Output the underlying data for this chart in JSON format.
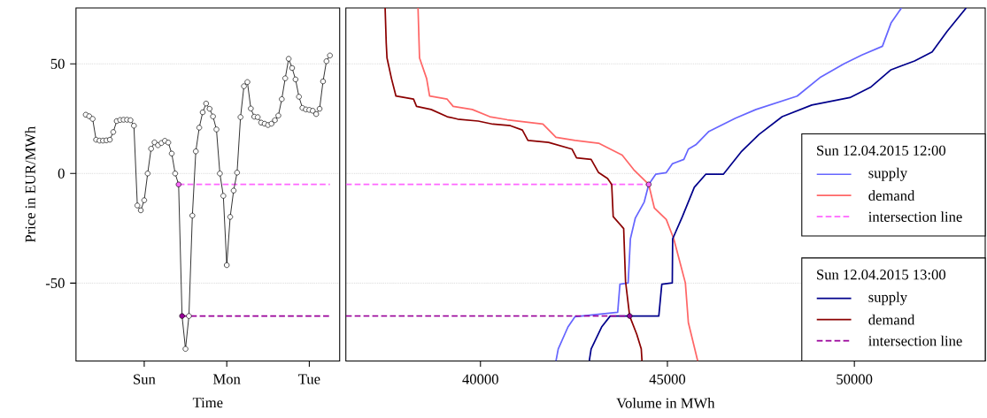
{
  "chart_data": [
    {
      "type": "line",
      "xlabel": "Time",
      "ylabel": "Price in EUR/MWh",
      "marker": "circle",
      "grid": "y",
      "categories": [
        null,
        null,
        null,
        null,
        null,
        null,
        null,
        null,
        null,
        null,
        null,
        null,
        null,
        null,
        null,
        null,
        null,
        "Sun",
        null,
        null,
        null,
        null,
        null,
        null,
        null,
        null,
        null,
        null,
        null,
        null,
        null,
        null,
        null,
        null,
        null,
        null,
        null,
        null,
        null,
        null,
        null,
        "Mon",
        null,
        null,
        null,
        null,
        null,
        null,
        null,
        null,
        null,
        null,
        null,
        null,
        null,
        null,
        null,
        null,
        null,
        null,
        null,
        null,
        null,
        null,
        null,
        "Tue",
        null,
        null,
        null,
        null,
        null,
        null
      ],
      "ylim": [
        -85.5,
        75.5
      ],
      "yticks": [
        -50,
        0,
        50
      ],
      "series": [
        {
          "type": "line",
          "color": "#ff66ff",
          "line_style": "dashed",
          "marker": "none",
          "values": [
            null,
            null,
            null,
            null,
            null,
            null,
            null,
            null,
            null,
            null,
            null,
            null,
            null,
            null,
            null,
            null,
            null,
            null,
            null,
            null,
            null,
            null,
            null,
            null,
            null,
            null,
            null,
            -5,
            -5,
            -5,
            -5,
            -5,
            -5,
            -5,
            -5,
            -5,
            -5,
            -5,
            -5,
            -5,
            -5,
            -5,
            -5,
            -5,
            -5,
            -5,
            -5,
            -5,
            -5,
            -5,
            -5,
            -5,
            -5,
            -5,
            -5,
            -5,
            -5,
            -5,
            -5,
            -5,
            -5,
            -5,
            -5,
            -5,
            -5,
            -5,
            -5,
            -5,
            -5,
            -5,
            -5,
            -5
          ]
        },
        {
          "type": "line",
          "color": "#990099",
          "line_style": "dashed",
          "marker": "none",
          "values": [
            null,
            null,
            null,
            null,
            null,
            null,
            null,
            null,
            null,
            null,
            null,
            null,
            null,
            null,
            null,
            null,
            null,
            null,
            null,
            null,
            null,
            null,
            null,
            null,
            null,
            null,
            null,
            null,
            -65,
            -65,
            -65,
            -65,
            -65,
            -65,
            -65,
            -65,
            -65,
            -65,
            -65,
            -65,
            -65,
            -65,
            -65,
            -65,
            -65,
            -65,
            -65,
            -65,
            -65,
            -65,
            -65,
            -65,
            -65,
            -65,
            -65,
            -65,
            -65,
            -65,
            -65,
            -65,
            -65,
            -65,
            -65,
            -65,
            -65,
            -65,
            -65,
            -65,
            -65,
            -65,
            -65,
            -65
          ]
        },
        {
          "color": "#000000",
          "values": [
            26.8,
            26.1,
            24.9,
            15.4,
            15.0,
            15.0,
            15.1,
            15.4,
            18.9,
            23.9,
            24.4,
            24.5,
            24.5,
            24.3,
            21.8,
            -14.6,
            -16.8,
            -12.2,
            0,
            11.3,
            14.2,
            12.9,
            13.9,
            14.9,
            14.1,
            9.1,
            0,
            -5,
            -65,
            -80,
            -65,
            -19.2,
            10.1,
            20.9,
            27.9,
            31.9,
            29.5,
            26.0,
            20.1,
            0,
            -10.2,
            -41.8,
            -19.8,
            -7.8,
            0.4,
            25.7,
            39.8,
            41.7,
            29.6,
            25.9,
            25.7,
            23.2,
            22.7,
            22.1,
            22.7,
            24.3,
            26.4,
            33.9,
            43.4,
            52.3,
            48.1,
            42.9,
            35.0,
            29.9,
            29.2,
            29.0,
            28.6,
            27.1,
            29.5,
            42.0,
            51.2,
            53.8
          ],
          "colors": [
            "#ffffff",
            "#ffffff",
            "#ffffff",
            "#ffffff",
            "#ffffff",
            "#ffffff",
            "#ffffff",
            "#ffffff",
            "#ffffff",
            "#ffffff",
            "#ffffff",
            "#ffffff",
            "#ffffff",
            "#ffffff",
            "#ffffff",
            "#ffffff",
            "#ffffff",
            "#ffffff",
            "#ffffff",
            "#ffffff",
            "#ffffff",
            "#ffffff",
            "#ffffff",
            "#ffffff",
            "#ffffff",
            "#ffffff",
            "#ffffff",
            "#ff66ff",
            "#990099",
            "#ffffff",
            "#ffffff",
            "#ffffff",
            "#ffffff",
            "#ffffff",
            "#ffffff",
            "#ffffff",
            "#ffffff",
            "#ffffff",
            "#ffffff",
            "#ffffff",
            "#ffffff",
            "#ffffff",
            "#ffffff",
            "#ffffff",
            "#ffffff",
            "#ffffff",
            "#ffffff",
            "#ffffff",
            "#ffffff",
            "#ffffff",
            "#ffffff",
            "#ffffff",
            "#ffffff",
            "#ffffff",
            "#ffffff",
            "#ffffff",
            "#ffffff",
            "#ffffff",
            "#ffffff",
            "#ffffff",
            "#ffffff",
            "#ffffff",
            "#ffffff",
            "#ffffff",
            "#ffffff",
            "#ffffff",
            "#ffffff",
            "#ffffff",
            "#ffffff",
            "#ffffff",
            "#ffffff",
            "#ffffff"
          ]
        }
      ]
    },
    {
      "type": "line",
      "xlabel": "Volume in MWh",
      "grid": "y",
      "tick_labels": "x",
      "legend": "right",
      "xlim": [
        36400,
        53500
      ],
      "ylim": [
        -85.5,
        75.5
      ],
      "xticks": [
        40000,
        45000,
        50000
      ],
      "yticks": [
        -50,
        0,
        50
      ],
      "annotations": [
        "Sun 12.04.2015 12:00",
        "Sun 12.04.2015 13:00"
      ],
      "series": [
        {
          "name": "supply",
          "color": "#6666ff",
          "x": [
            42020,
            42080,
            42340,
            42530,
            43670,
            43730,
            43950,
            44010,
            44140,
            44380,
            44500,
            44690,
            44970,
            45130,
            45440,
            45560,
            45760,
            46110,
            46820,
            47370,
            48470,
            49100,
            49720,
            50200,
            50750,
            50980,
            51260
          ],
          "values": [
            -85.5,
            -80,
            -70,
            -65.3,
            -63.3,
            -50.5,
            -49.9,
            -29.8,
            -20.4,
            -13,
            -5,
            -0.3,
            0.4,
            4.4,
            6.4,
            11.1,
            13.1,
            19.2,
            25.2,
            29.2,
            35.3,
            44,
            50,
            54,
            58,
            68.6,
            75.5
          ]
        },
        {
          "name": "demand",
          "color": "#ff6666",
          "x": [
            38330,
            38370,
            38560,
            38640,
            39110,
            39270,
            39780,
            40250,
            40720,
            41670,
            42020,
            42530,
            43160,
            43790,
            44100,
            44500,
            44650,
            44970,
            45170,
            45480,
            45560,
            45810
          ],
          "values": [
            75.5,
            52.7,
            43.3,
            35.3,
            33.9,
            30.6,
            29.2,
            25.9,
            24.5,
            22.5,
            16.5,
            15.1,
            13.8,
            8.4,
            1.7,
            -5,
            -15.7,
            -21,
            -29.8,
            -49.9,
            -68,
            -85.5
          ]
        },
        {
          "name": "intersection line",
          "color": "#ff66ff",
          "line_style": "dashed",
          "marker": "circle",
          "colors": [
            null,
            "#ff66ff"
          ],
          "x": [
            36400,
            44500
          ],
          "values": [
            -5,
            -5
          ]
        },
        {
          "name": "supply",
          "color": "#00008b",
          "x": [
            42910,
            42960,
            43240,
            43470,
            44770,
            44850,
            45130,
            45140,
            45400,
            45720,
            46030,
            46500,
            46970,
            47450,
            48070,
            48860,
            49880,
            50430,
            50980,
            51610,
            52080,
            52480,
            52990
          ],
          "values": [
            -85.5,
            -80,
            -70,
            -65,
            -65,
            -50.5,
            -49.9,
            -29.8,
            -19.7,
            -6.3,
            -0.3,
            -0.3,
            9.8,
            17.8,
            25.9,
            31.2,
            34.6,
            39.3,
            47.3,
            51.3,
            55.4,
            64.8,
            75.5
          ]
        },
        {
          "name": "demand",
          "color": "#8b0000",
          "x": [
            37450,
            37480,
            37500,
            37620,
            37740,
            38210,
            38290,
            38680,
            39110,
            39390,
            39940,
            40330,
            40800,
            41120,
            41270,
            41820,
            42450,
            42570,
            42960,
            43160,
            43400,
            43510,
            43550,
            43830,
            43880,
            43990,
            44180,
            44300,
            44320
          ],
          "values": [
            75.5,
            59.4,
            52.7,
            43.3,
            35.3,
            33.9,
            30.6,
            29.2,
            25.9,
            24.8,
            23.9,
            22.5,
            21.8,
            19.8,
            15.1,
            14.2,
            11.1,
            7.1,
            6.4,
            0.4,
            -2.3,
            -5,
            -19.7,
            -25.1,
            -49.2,
            -65,
            -73.3,
            -80,
            -85.5
          ]
        },
        {
          "name": "intersection line",
          "color": "#990099",
          "line_style": "dashed",
          "marker": "circle",
          "colors": [
            null,
            "#990099"
          ],
          "x": [
            36400,
            43990
          ],
          "values": [
            -65,
            -65
          ]
        }
      ]
    }
  ]
}
